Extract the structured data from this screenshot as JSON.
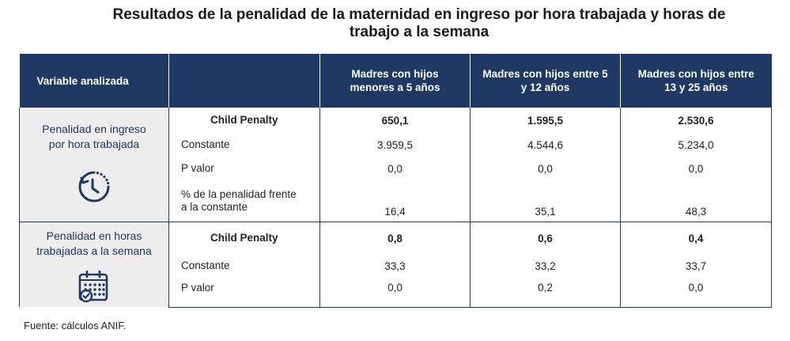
{
  "title": {
    "line1": "Resultados de la penalidad de la maternidad en ingreso por hora trabajada y horas de",
    "line2": "trabajo a la semana"
  },
  "table": {
    "headers": {
      "variable": "Variable analizada",
      "blank": "",
      "col1": "Madres con hijos menores a 5 años",
      "col2": "Madres con hijos entre 5 y 12 años",
      "col3": "Madres con hijos entre 13 y 25 años"
    },
    "section1": {
      "variable": "Penalidad en ingreso por hora trabajada",
      "icon": "clock-icon",
      "rows": [
        {
          "label": "Child Penalty",
          "v1": "650,1",
          "v2": "1.595,5",
          "v3": "2.530,6"
        },
        {
          "label": "Constante",
          "v1": "3.959,5",
          "v2": "4.544,6",
          "v3": "5.234,0"
        },
        {
          "label": "P valor",
          "v1": "0,0",
          "v2": "0,0",
          "v3": "0,0"
        },
        {
          "label": "% de la penalidad frente a la constante",
          "v1": "16,4",
          "v2": "35,1",
          "v3": "48,3"
        }
      ]
    },
    "section2": {
      "variable": "Penalidad en horas trabajadas a la semana",
      "icon": "calendar-icon",
      "rows": [
        {
          "label": "Child Penalty",
          "v1": "0,8",
          "v2": "0,6",
          "v3": "0,4"
        },
        {
          "label": "Constante",
          "v1": "33,3",
          "v2": "33,2",
          "v3": "33,7"
        },
        {
          "label": "P valor",
          "v1": "0,0",
          "v2": "0,2",
          "v3": "0,0"
        }
      ]
    }
  },
  "source": "Fuente: cálculos ANIF.",
  "colors": {
    "header": "#1f3864",
    "shade": "#ededed"
  }
}
